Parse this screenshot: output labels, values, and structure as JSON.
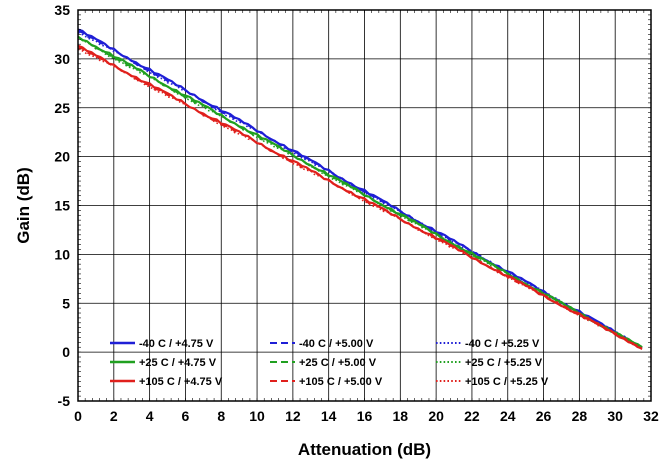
{
  "chart_data": {
    "type": "line",
    "xlabel": "Attenuation (dB)",
    "ylabel": "Gain (dB)",
    "xlim": [
      0,
      32
    ],
    "ylim": [
      -5,
      35
    ],
    "xticks": [
      "0",
      "2",
      "4",
      "6",
      "8",
      "10",
      "12",
      "14",
      "16",
      "18",
      "20",
      "22",
      "24",
      "26",
      "28",
      "30",
      "32"
    ],
    "yticks": [
      "-5",
      "0",
      "5",
      "10",
      "15",
      "20",
      "25",
      "30",
      "35"
    ],
    "grid": true,
    "legend_position": "bottom-left",
    "series": [
      {
        "name": "-40 C / +4.75 V",
        "color": "#1f1fd6",
        "dash": "solid",
        "x": [
          0,
          31.5
        ],
        "y": [
          33.0,
          0.5
        ]
      },
      {
        "name": "-40 C / +5.00 V",
        "color": "#1f1fd6",
        "dash": "dashed",
        "x": [
          0,
          31.5
        ],
        "y": [
          32.9,
          0.5
        ]
      },
      {
        "name": "-40 C / +5.25 V",
        "color": "#1f1fd6",
        "dash": "dotted",
        "x": [
          0,
          31.5
        ],
        "y": [
          32.8,
          0.5
        ]
      },
      {
        "name": "+25 C / +4.75 V",
        "color": "#20a020",
        "dash": "solid",
        "x": [
          0,
          31.5
        ],
        "y": [
          32.3,
          0.45
        ]
      },
      {
        "name": "+25 C / +5.00 V",
        "color": "#20a020",
        "dash": "dashed",
        "x": [
          0,
          31.5
        ],
        "y": [
          32.2,
          0.45
        ]
      },
      {
        "name": "+25 C / +5.25 V",
        "color": "#20a020",
        "dash": "dotted",
        "x": [
          0,
          31.5
        ],
        "y": [
          32.1,
          0.45
        ]
      },
      {
        "name": "+105 C / +4.75 V",
        "color": "#e0201c",
        "dash": "solid",
        "x": [
          0,
          31.5
        ],
        "y": [
          31.3,
          0.4
        ]
      },
      {
        "name": "+105 C / +5.00 V",
        "color": "#e0201c",
        "dash": "dashed",
        "x": [
          0,
          31.5
        ],
        "y": [
          31.2,
          0.4
        ]
      },
      {
        "name": "+105 C / +5.25 V",
        "color": "#e0201c",
        "dash": "dotted",
        "x": [
          0,
          31.5
        ],
        "y": [
          31.1,
          0.4
        ]
      }
    ]
  }
}
